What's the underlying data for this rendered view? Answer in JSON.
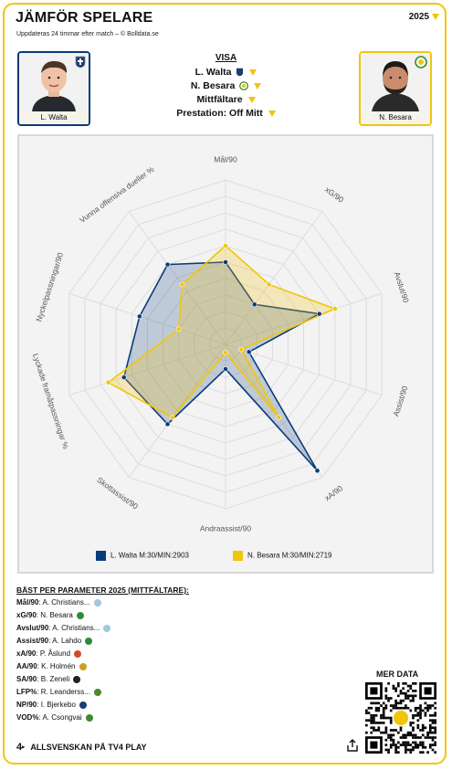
{
  "header": {
    "title": "JÄMFÖR SPELARE",
    "subtitle": "Uppdateras 24 timmar efter match – © Bolldata.se",
    "year": "2025"
  },
  "players": {
    "left": {
      "name": "L. Walta",
      "color": "#0a3b7a"
    },
    "right": {
      "name": "N. Besara",
      "color": "#f2c50a"
    }
  },
  "visa": {
    "heading": "VISA",
    "player1": "L. Walta",
    "player2": "N. Besara",
    "position": "Mittfältare",
    "performance": "Prestation: Off Mitt"
  },
  "chart_data": {
    "type": "radar",
    "axes": [
      "Mål/90",
      "xG/90",
      "Avslut/90",
      "Assist/90",
      "xA/90",
      "Andraassist/90",
      "Skottassist/90",
      "Lyckade framåtpassningar %",
      "Nyckelpassningar/90",
      "Vunna offensiva dueller %"
    ],
    "rmax": 10,
    "series": [
      {
        "name": "L. Walta M:30/MIN:2903",
        "color": "#0a3b7a",
        "values": [
          5.0,
          3.0,
          6.0,
          1.5,
          9.5,
          1.5,
          6.0,
          6.5,
          5.5,
          6.0
        ]
      },
      {
        "name": "N. Besara M:30/MIN:2719",
        "color": "#f2c50a",
        "values": [
          6.0,
          4.5,
          7.0,
          1.0,
          5.5,
          0.5,
          5.5,
          7.5,
          3.0,
          4.5
        ]
      }
    ]
  },
  "best": {
    "heading": "BÄST PER PARAMETER 2025 (MITTFÄLTARE):",
    "rows": [
      {
        "label": "Mål/90",
        "value": "A. Christians...",
        "club_color": "#9fc7e0"
      },
      {
        "label": "xG/90",
        "value": "N. Besara",
        "club_color": "#2e8b3a"
      },
      {
        "label": "Avslut/90",
        "value": "A. Christians...",
        "club_color": "#9fc7e0"
      },
      {
        "label": "Assist/90",
        "value": "A. Lahdo",
        "club_color": "#2e8b3a"
      },
      {
        "label": "xA/90",
        "value": "P. Åslund",
        "club_color": "#d04a2a"
      },
      {
        "label": "AA/90",
        "value": "K. Holmén",
        "club_color": "#c9a21e"
      },
      {
        "label": "SA/90",
        "value": "B. Zeneli",
        "club_color": "#222222"
      },
      {
        "label": "LFP%",
        "value": "R. Leanderss...",
        "club_color": "#4a8a2a"
      },
      {
        "label": "NP/90",
        "value": "I. Bjerkebo",
        "club_color": "#1d3c73"
      },
      {
        "label": "VOD%",
        "value": "A. Csongvai",
        "club_color": "#3f8a2a"
      }
    ]
  },
  "more_data": "MER DATA",
  "footer": {
    "brand": "ALLSVENSKAN PÅ TV4 PLAY"
  }
}
